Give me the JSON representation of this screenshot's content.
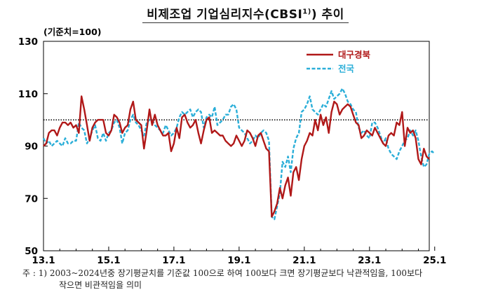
{
  "title_main": "비제조업 기업심리지수(CBSI",
  "title_sup": "1)",
  "title_tail": ") 추이",
  "chart_data": {
    "type": "line",
    "baseline_label": "(기준치=100)",
    "y_ticks": [
      "130",
      "110",
      "90",
      "70",
      "50"
    ],
    "ylim": [
      50,
      130
    ],
    "x_ticks": [
      "13.1",
      "15.1",
      "17.1",
      "19.1",
      "21.1",
      "23.1",
      "25.1"
    ],
    "reference_line": 100,
    "grid": false,
    "legend_position": "top-right",
    "series": [
      {
        "name": "대구경북",
        "color": "#b01818",
        "style": "solid",
        "values": [
          90,
          91,
          95,
          96,
          96,
          94,
          97,
          99,
          99,
          98,
          99,
          97,
          98,
          95,
          109,
          104,
          98,
          92,
          97,
          99,
          100,
          100,
          100,
          95,
          94,
          96,
          102,
          101,
          99,
          95,
          97,
          98,
          104,
          107,
          100,
          99,
          98,
          89,
          96,
          104,
          98,
          102,
          98,
          96,
          94,
          94,
          95,
          88,
          91,
          97,
          93,
          101,
          102,
          99,
          97,
          98,
          100,
          95,
          91,
          96,
          100,
          101,
          95,
          96,
          95,
          94,
          94,
          92,
          91,
          90,
          91,
          94,
          92,
          90,
          92,
          96,
          95,
          93,
          90,
          94,
          95,
          92,
          89,
          88,
          63,
          65,
          68,
          74,
          70,
          75,
          78,
          71,
          80,
          82,
          77,
          85,
          90,
          92,
          95,
          94,
          100,
          96,
          102,
          98,
          101,
          95,
          103,
          107,
          106,
          102,
          104,
          105,
          106,
          105,
          102,
          99,
          98,
          93,
          94,
          96,
          95,
          94,
          97,
          95,
          93,
          91,
          90,
          94,
          95,
          94,
          99,
          98,
          103,
          90,
          97,
          95,
          96,
          93,
          85,
          83,
          89,
          86,
          85
        ]
      },
      {
        "name": "전국",
        "color": "#2aaed8",
        "style": "dashed",
        "values": [
          93,
          91,
          92,
          90,
          91,
          92,
          91,
          90,
          93,
          91,
          91,
          92,
          92,
          99,
          97,
          96,
          91,
          93,
          96,
          98,
          93,
          92,
          95,
          92,
          95,
          96,
          99,
          100,
          97,
          91,
          95,
          96,
          100,
          102,
          99,
          98,
          96,
          94,
          99,
          100,
          100,
          98,
          97,
          96,
          95,
          98,
          96,
          94,
          95,
          97,
          101,
          103,
          102,
          103,
          104,
          101,
          103,
          104,
          103,
          97,
          101,
          102,
          101,
          105,
          98,
          99,
          100,
          102,
          102,
          105,
          106,
          104,
          97,
          96,
          95,
          93,
          91,
          92,
          94,
          93,
          95,
          96,
          95,
          92,
          63,
          62,
          67,
          72,
          84,
          82,
          86,
          80,
          89,
          93,
          95,
          103,
          104,
          106,
          109,
          104,
          103,
          102,
          104,
          106,
          105,
          108,
          111,
          108,
          109,
          110,
          112,
          110,
          107,
          106,
          104,
          103,
          97,
          95,
          96,
          94,
          93,
          99,
          99,
          97,
          94,
          91,
          93,
          89,
          87,
          86,
          85,
          88,
          90,
          92,
          93,
          96,
          94,
          96,
          92,
          86,
          82,
          83,
          87,
          88,
          87
        ]
      }
    ]
  },
  "footnote": {
    "line1": "주 : 1) 2003~2024년중 장기평균치를 기준값 100으로 하여 100보다 크면 장기평균보다 낙관적임을, 100보다",
    "line2": "작으면 비관적임을 의미"
  }
}
